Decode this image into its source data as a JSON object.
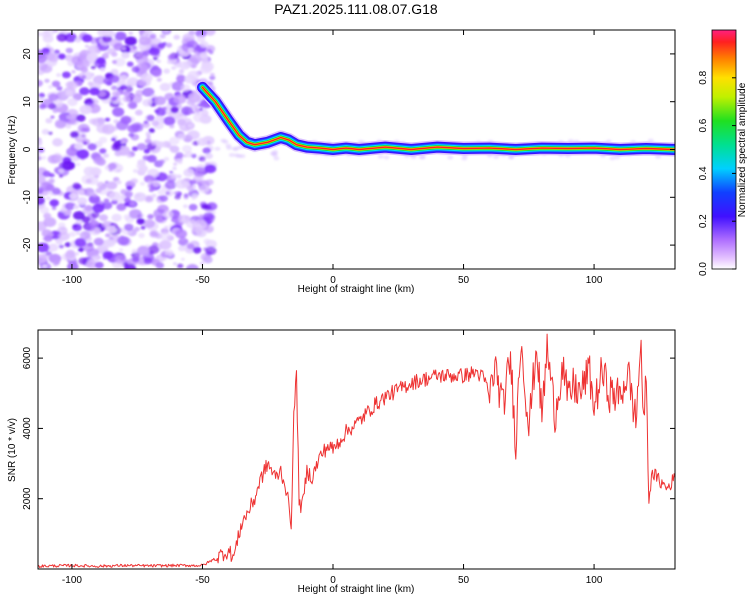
{
  "title": "PAZ1.2025.111.08.07.G18",
  "colors": {
    "snr_line": "#ee3333",
    "noise": "#8a2be2",
    "ridge_center": "#ff2020",
    "axis": "#000000"
  },
  "chart_data": [
    {
      "type": "heatmap",
      "name": "spectrogram",
      "xlabel": "Height of straight line (km)",
      "ylabel": "Frequency (Hz)",
      "xlim": [
        -113,
        131
      ],
      "ylim": [
        -25,
        25
      ],
      "xticks": [
        -100,
        -50,
        0,
        50,
        100
      ],
      "yticks": [
        -20,
        -10,
        0,
        10,
        20
      ],
      "colorbar": {
        "label": "Normalized spectral amplitude",
        "range": [
          0,
          1
        ],
        "ticks": [
          "0.0",
          "0.2",
          "0.4",
          "0.6",
          "0.8"
        ],
        "colormap": "rainbow"
      },
      "noise_region_x": [
        -113,
        -46
      ],
      "ridge": {
        "x": [
          -50,
          -45,
          -40,
          -36,
          -33,
          -30,
          -25,
          -20,
          -17,
          -14,
          -10,
          -5,
          0,
          5,
          10,
          20,
          30,
          40,
          50,
          60,
          70,
          80,
          90,
          100,
          110,
          120,
          131
        ],
        "y": [
          13,
          10,
          6,
          3,
          1.5,
          1,
          1.5,
          2.5,
          2,
          1,
          0.5,
          0.3,
          0,
          0.3,
          0,
          0.5,
          0,
          0.5,
          0.2,
          0.3,
          0,
          0.3,
          0.2,
          0.3,
          0,
          0.2,
          0
        ]
      }
    },
    {
      "type": "line",
      "name": "snr",
      "xlabel": "Height of straight line (km)",
      "ylabel": "SNR (10 * v/v)",
      "xlim": [
        -113,
        131
      ],
      "ylim": [
        0,
        6800
      ],
      "xticks": [
        -100,
        -50,
        0,
        50,
        100
      ],
      "yticks": [
        2000,
        4000,
        6000
      ],
      "series": [
        {
          "x": [
            -113,
            -100,
            -90,
            -80,
            -70,
            -60,
            -50,
            -45,
            -42,
            -40,
            -38,
            -35,
            -32,
            -30,
            -28,
            -25,
            -22,
            -20,
            -18,
            -16,
            -15,
            -14,
            -13,
            -12,
            -11,
            -10,
            -8,
            -5,
            -2,
            0,
            5,
            10,
            15,
            20,
            25,
            30,
            35,
            40,
            45,
            50,
            55,
            58,
            60,
            62,
            65,
            68,
            70,
            72,
            75,
            78,
            80,
            82,
            85,
            88,
            90,
            92,
            95,
            98,
            100,
            103,
            106,
            110,
            113,
            116,
            118,
            119,
            120,
            121,
            122,
            125,
            128,
            131
          ],
          "y": [
            80,
            100,
            80,
            100,
            90,
            100,
            100,
            300,
            450,
            500,
            350,
            1300,
            1700,
            2000,
            2500,
            3000,
            2600,
            2800,
            2300,
            1300,
            4300,
            5600,
            2000,
            1700,
            2200,
            2800,
            2600,
            3200,
            3500,
            3400,
            3900,
            4200,
            4600,
            4900,
            5100,
            5300,
            5400,
            5500,
            5500,
            5500,
            5600,
            5400,
            4900,
            5800,
            4600,
            6000,
            3600,
            6600,
            4000,
            6400,
            4300,
            6300,
            4400,
            5800,
            4800,
            5200,
            5000,
            5700,
            4600,
            5600,
            5000,
            4900,
            5600,
            4200,
            6500,
            3900,
            5500,
            1700,
            2800,
            2500,
            2300,
            2600
          ]
        }
      ]
    }
  ]
}
